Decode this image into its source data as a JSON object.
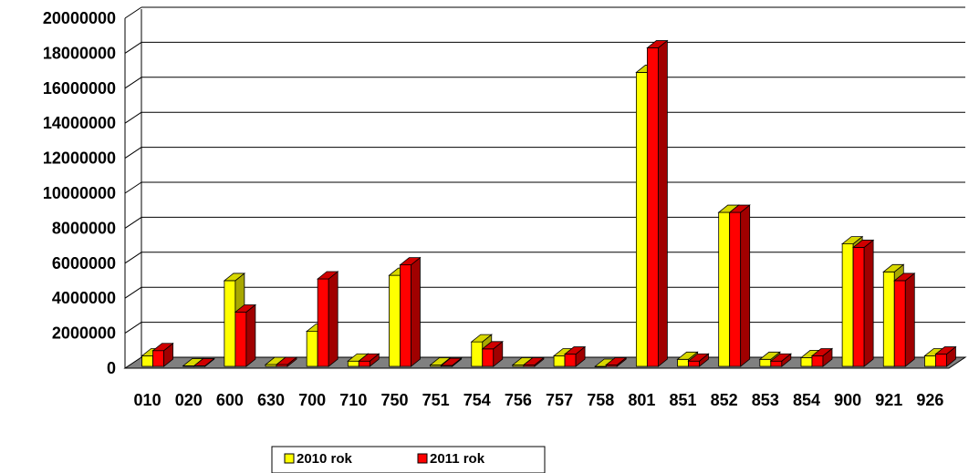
{
  "chart_data": {
    "type": "bar",
    "title": "",
    "xlabel": "",
    "ylabel": "",
    "ylim": [
      0,
      20000000
    ],
    "yticks": [
      0,
      2000000,
      4000000,
      6000000,
      8000000,
      10000000,
      12000000,
      14000000,
      16000000,
      18000000,
      20000000
    ],
    "ytick_labels": [
      "0",
      "2000000",
      "4000000",
      "6000000",
      "8000000",
      "10000000",
      "12000000",
      "14000000",
      "16000000",
      "18000000",
      "20000000"
    ],
    "grid": true,
    "style": "3d-clustered-column",
    "legend_position": "bottom",
    "categories": [
      "010",
      "020",
      "600",
      "630",
      "700",
      "710",
      "750",
      "751",
      "754",
      "756",
      "757",
      "758",
      "801",
      "851",
      "852",
      "853",
      "854",
      "900",
      "921",
      "926"
    ],
    "series": [
      {
        "name": "2010 rok",
        "color": "#ffff00",
        "values": [
          600000,
          30000,
          4900000,
          100000,
          2000000,
          300000,
          5200000,
          80000,
          1400000,
          80000,
          600000,
          0,
          16800000,
          400000,
          8800000,
          400000,
          500000,
          7000000,
          5400000,
          600000
        ]
      },
      {
        "name": "2011 rok",
        "color": "#ff0000",
        "values": [
          900000,
          30000,
          3100000,
          100000,
          5000000,
          300000,
          5800000,
          50000,
          1000000,
          80000,
          700000,
          80000,
          18200000,
          300000,
          8800000,
          300000,
          600000,
          6800000,
          4900000,
          700000
        ]
      }
    ]
  },
  "colors": {
    "floor": "#808080",
    "wall_line": "#000000"
  }
}
